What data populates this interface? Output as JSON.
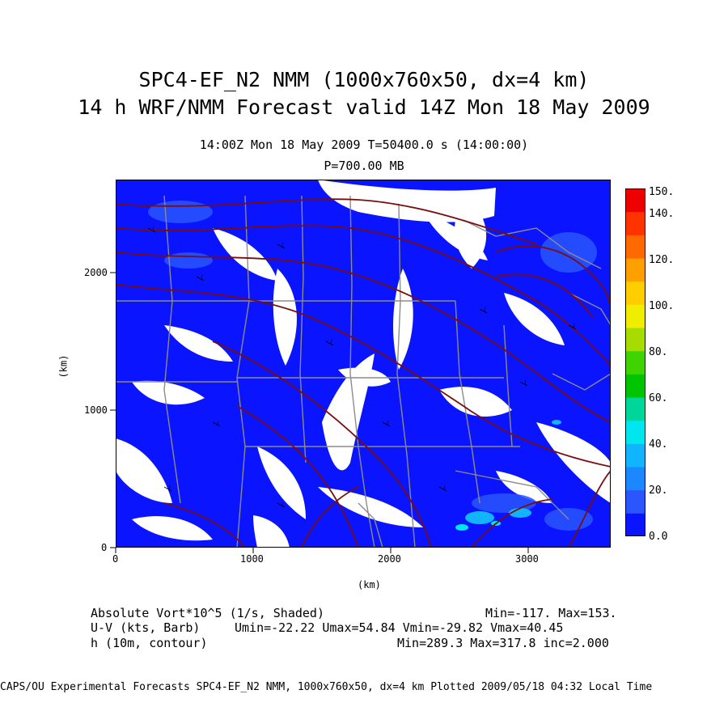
{
  "title": {
    "line1": "SPC4-EF_N2 NMM (1000x760x50, dx=4 km)",
    "line2": "14 h WRF/NMM Forecast valid 14Z Mon 18 May 2009"
  },
  "subtitle": {
    "line1": "14:00Z Mon 18 May 2009    T=50400.0 s (14:00:00)",
    "line2": "P=700.00 MB"
  },
  "axes": {
    "x_ticks": [
      "0",
      "1000",
      "2000",
      "3000"
    ],
    "y_ticks": [
      "0",
      "1000",
      "2000"
    ],
    "x_label": "(km)",
    "y_label": "(km)",
    "x_range": [
      0,
      3600
    ],
    "y_range": [
      0,
      2680
    ]
  },
  "colorbar": {
    "labels": [
      "0.0",
      "20.",
      "40.",
      "60.",
      "80.",
      "100.",
      "120.",
      "140.",
      "150."
    ],
    "colors": [
      "#0a14ff",
      "#2a55ff",
      "#1c88ff",
      "#12b4ff",
      "#00e6ee",
      "#00d59a",
      "#00c400",
      "#3fd400",
      "#a8dc00",
      "#f0ee00",
      "#ffcd00",
      "#ffa000",
      "#ff6a00",
      "#ff3300",
      "#ee0000"
    ]
  },
  "info": {
    "var1_name": "Absolute Vort*10^5 (1/s, Shaded)",
    "var1_stats": "Min=-117. Max=153.",
    "var2_name": "U-V (kts, Barb)",
    "var2_stats": "Umin=-22.22 Umax=54.84 Vmin=-29.82 Vmax=40.45",
    "var3_name": "h (10m, contour)",
    "var3_stats": "Min=289.3 Max=317.8 inc=2.000"
  },
  "footer": "CAPS/OU Experimental Forecasts  SPC4-EF_N2 NMM, 1000x760x50, dx=4 km  Plotted 2009/05/18 04:32 Local Time",
  "colors": {
    "vort_fill": "#0a14ff",
    "contour": "#7a0c0c",
    "boundary": "#8c8c8c",
    "barb": "#000000"
  }
}
